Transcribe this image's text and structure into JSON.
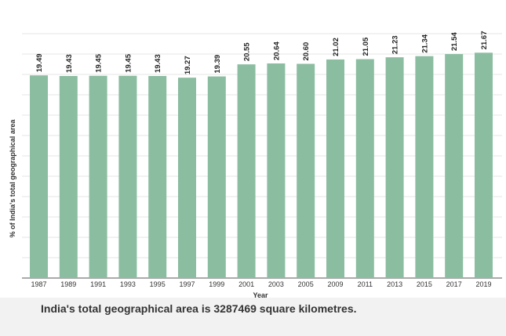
{
  "chart_data": {
    "type": "bar",
    "categories": [
      "1987",
      "1989",
      "1991",
      "1993",
      "1995",
      "1997",
      "1999",
      "2001",
      "2003",
      "2005",
      "2009",
      "2011",
      "2013",
      "2015",
      "2017",
      "2019"
    ],
    "values": [
      19.49,
      19.43,
      19.45,
      19.45,
      19.43,
      19.27,
      19.39,
      20.55,
      20.64,
      20.6,
      21.02,
      21.05,
      21.23,
      21.34,
      21.54,
      21.67
    ],
    "data_labels": [
      "19.49",
      "19.43",
      "19.45",
      "19.45",
      "19.43",
      "19.27",
      "19.39",
      "20.55",
      "20.64",
      "20.60",
      "21.02",
      "21.05",
      "21.23",
      "21.34",
      "21.54",
      "21.67"
    ],
    "title": "",
    "xlabel": "Year",
    "ylabel": "% of India's total geographical area",
    "ylim": [
      0,
      23.5
    ],
    "grid": true,
    "bar_color": "#8bbda0"
  },
  "footnote": "India's total geographical area is 3287469 square kilometres."
}
